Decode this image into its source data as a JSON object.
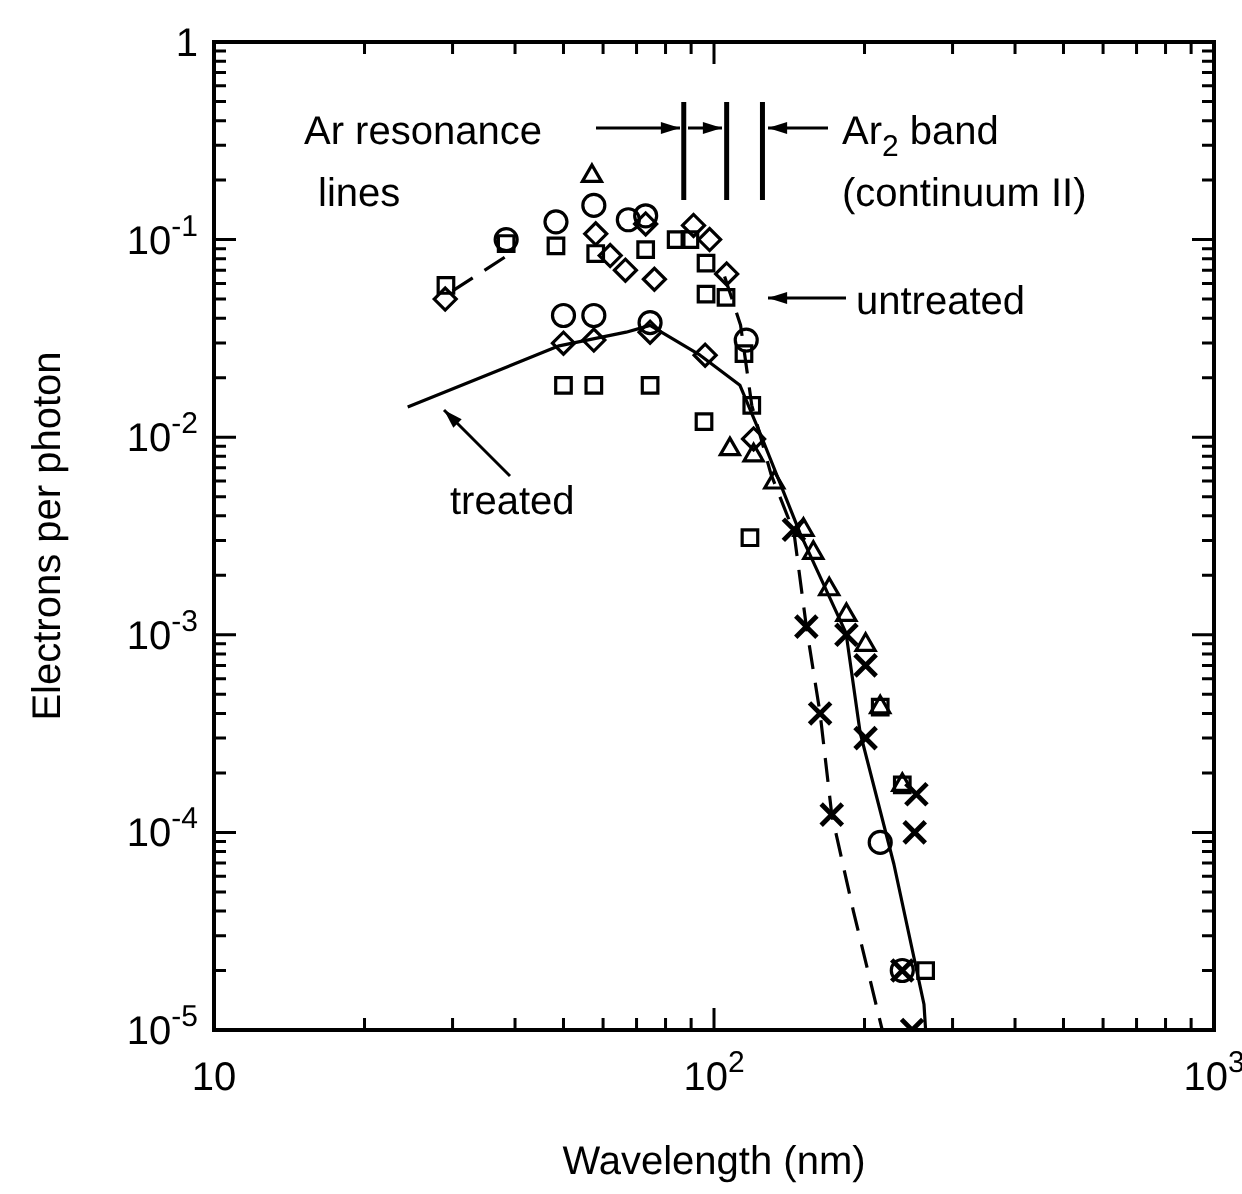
{
  "chart_data": {
    "type": "scatter",
    "xlabel": "Wavelength (nm)",
    "ylabel": "Electrons per photon",
    "log": "xy",
    "xlim": [
      10,
      1000
    ],
    "ylim": [
      1e-05,
      1
    ],
    "xticks": [
      10,
      {
        "value": 20,
        "label": null
      },
      {
        "value": 30,
        "label": null
      },
      {
        "value": 40,
        "label": null
      },
      {
        "value": 50,
        "label": null
      },
      {
        "value": 60,
        "label": null
      },
      {
        "value": 70,
        "label": null
      },
      {
        "value": 80,
        "label": null
      },
      {
        "value": 90,
        "label": null
      },
      {
        "value": 100,
        "label": "10$^{2}$"
      },
      {
        "value": 200,
        "label": null
      },
      {
        "value": 300,
        "label": null
      },
      {
        "value": 400,
        "label": null
      },
      {
        "value": 500,
        "label": null
      },
      {
        "value": 600,
        "label": null
      },
      {
        "value": 700,
        "label": null
      },
      {
        "value": 800,
        "label": null
      },
      {
        "value": 900,
        "label": null
      },
      {
        "value": 1000,
        "label": "10$^{3}$"
      }
    ],
    "yticks": [
      {
        "value": 1e-05,
        "label": "10$^{-5}$"
      },
      {
        "value": 2e-05,
        "label": null
      },
      {
        "value": 3e-05,
        "label": null
      },
      {
        "value": 4e-05,
        "label": null
      },
      {
        "value": 5e-05,
        "label": null
      },
      {
        "value": 6e-05,
        "label": null
      },
      {
        "value": 7e-05,
        "label": null
      },
      {
        "value": 8e-05,
        "label": null
      },
      {
        "value": 9e-05,
        "label": null
      },
      {
        "value": 0.0001,
        "label": "10$^{-4}$"
      },
      {
        "value": 0.0002,
        "label": null
      },
      {
        "value": 0.0003,
        "label": null
      },
      {
        "value": 0.0004,
        "label": null
      },
      {
        "value": 0.0005,
        "label": null
      },
      {
        "value": 0.0006,
        "label": null
      },
      {
        "value": 0.0007,
        "label": null
      },
      {
        "value": 0.0008,
        "label": null
      },
      {
        "value": 0.0009,
        "label": null
      },
      {
        "value": 0.001,
        "label": "10$^{-3}$"
      },
      {
        "value": 0.002,
        "label": null
      },
      {
        "value": 0.003,
        "label": null
      },
      {
        "value": 0.004,
        "label": null
      },
      {
        "value": 0.005,
        "label": null
      },
      {
        "value": 0.006,
        "label": null
      },
      {
        "value": 0.007,
        "label": null
      },
      {
        "value": 0.008,
        "label": null
      },
      {
        "value": 0.009,
        "label": null
      },
      {
        "value": 0.01,
        "label": "10$^{-2}$"
      },
      {
        "value": 0.02,
        "label": null
      },
      {
        "value": 0.03,
        "label": null
      },
      {
        "value": 0.04,
        "label": null
      },
      {
        "value": 0.05,
        "label": null
      },
      {
        "value": 0.06,
        "label": null
      },
      {
        "value": 0.07,
        "label": null
      },
      {
        "value": 0.08,
        "label": null
      },
      {
        "value": 0.09,
        "label": null
      },
      {
        "value": 0.1,
        "label": "10$^{-1}$"
      },
      {
        "value": 0.2,
        "label": null
      },
      {
        "value": 0.3,
        "label": null
      },
      {
        "value": 0.4,
        "label": null
      },
      {
        "value": 0.5,
        "label": null
      },
      {
        "value": 0.6,
        "label": null
      },
      {
        "value": 0.7,
        "label": null
      },
      {
        "value": 0.8,
        "label": null
      },
      {
        "value": 0.9,
        "label": null
      },
      1
    ],
    "ref_lines": [
      {
        "axis": "x",
        "value": 87
      },
      {
        "axis": "x",
        "value": 106
      },
      {
        "axis": "x",
        "value": 125
      }
    ],
    "annotations": [
      "Ar resonance\nlines",
      "Ar$_{2}$ band\n(continuum II)",
      "untreated",
      "treated"
    ],
    "series": [
      {
        "type": "line",
        "marker": "none",
        "line_style": "solid",
        "color": "#000000",
        "x": [
          24.4,
          49,
          66.7,
          74.5,
          93.8,
          112.7,
          123.6,
          148.6,
          183.7,
          196,
          229,
          263,
          265
        ],
        "values": [
          0.0142,
          0.029,
          0.034,
          0.0368,
          0.026,
          0.0183,
          0.0105,
          0.00327,
          0.00102,
          0.00032,
          6.9e-05,
          1.35e-05,
          1e-05
        ]
      },
      {
        "type": "line",
        "marker": "none",
        "line_style": "dashed",
        "color": "#000000",
        "x": [
          30,
          40,
          70,
          105,
          113,
          119,
          130,
          144.5,
          153,
          163,
          172,
          190,
          217
        ],
        "values": [
          0.055,
          0.088,
          null,
          0.065,
          0.037,
          0.0145,
          0.0065,
          0.0033,
          0.0011,
          0.0004,
          0.000123,
          4e-05,
          1e-05
        ]
      },
      {
        "marker": "square",
        "color": "#000000",
        "x": [
          29.1,
          38.4,
          48.3,
          58,
          73,
          89.5,
          96.4,
          105.7,
          114.8
        ],
        "values": [
          0.0586,
          0.0955,
          0.093,
          0.085,
          0.089,
          0.1,
          0.076,
          0.051,
          0.0265
        ]
      },
      {
        "marker": "square",
        "color": "#000000",
        "x": [
          50,
          57.5,
          74.5,
          95.5,
          118,
          215,
          238,
          265
        ],
        "values": [
          0.0183,
          0.0183,
          0.0183,
          0.012,
          0.0031,
          0.00043,
          0.000174,
          2e-05
        ]
      },
      {
        "marker": "circle",
        "color": "#000000",
        "x": [
          38.4,
          48.3,
          67.4,
          73,
          116
        ],
        "values": [
          0.1,
          0.123,
          0.126,
          0.132,
          0.031
        ]
      },
      {
        "marker": "triangle",
        "color": "#000000",
        "x": [
          57
        ],
        "values": [
          0.21
        ]
      },
      {
        "marker": "circle",
        "color": "#000000",
        "x": [
          57.5
        ],
        "values": [
          0.149
        ]
      },
      {
        "marker": "diamond",
        "color": "#000000",
        "x": [
          62,
          66.5,
          76
        ],
        "values": [
          0.083,
          0.07,
          0.063
        ]
      },
      {
        "marker": "square",
        "color": "#000000",
        "x": [
          84,
          96.4,
          119
        ],
        "values": [
          0.1,
          0.053,
          0.0145
        ]
      },
      {
        "marker": "diamond",
        "color": "#000000",
        "x": [
          29,
          58,
          73,
          91,
          98,
          106
        ],
        "values": [
          0.05,
          0.107,
          0.12,
          0.118,
          0.1,
          0.067
        ]
      },
      {
        "marker": "diamond",
        "color": "#000000",
        "x": [
          50,
          57.5,
          74.5,
          96,
          120
        ],
        "values": [
          0.0299,
          0.031,
          0.034,
          0.026,
          0.0098
        ]
      },
      {
        "marker": "circle",
        "color": "#000000",
        "x": [
          50,
          57.5,
          74.5,
          215,
          238
        ],
        "values": [
          0.0413,
          0.0413,
          0.038,
          8.9e-05,
          2e-05
        ]
      },
      {
        "marker": "triangle",
        "color": "#000000",
        "x": [
          107.6,
          120,
          132,
          151,
          158,
          170,
          184,
          201,
          215,
          238
        ],
        "values": [
          0.0087,
          0.0081,
          0.0059,
          0.0034,
          0.0026,
          0.0017,
          0.00126,
          0.00089,
          0.00043,
          0.000174
        ]
      },
      {
        "marker": "cross",
        "color": "#000000",
        "x": [
          184,
          201,
          201,
          238,
          249,
          252,
          254
        ],
        "values": [
          0.001,
          0.0007,
          0.0003,
          2e-05,
          1e-05,
          0.0001,
          0.000156
        ]
      },
      {
        "marker": "cross",
        "color": "#000000",
        "x": [
          144.5,
          153,
          163,
          172
        ],
        "values": [
          0.0034,
          0.0011,
          0.0004,
          0.000123
        ]
      }
    ]
  }
}
